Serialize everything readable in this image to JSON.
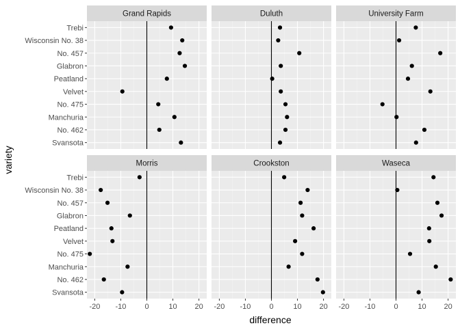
{
  "chart_data": {
    "type": "scatter",
    "xlabel": "difference",
    "ylabel": "variety",
    "xlim": [
      -23,
      23
    ],
    "x_ticks": [
      -20,
      -10,
      0,
      10,
      20
    ],
    "x_tick_labels": [
      "-20",
      "-10",
      "0",
      "10",
      "20"
    ],
    "varieties": [
      "Trebi",
      "Wisconsin No. 38",
      "No. 457",
      "Glabron",
      "Peatland",
      "Velvet",
      "No. 475",
      "Manchuria",
      "No. 462",
      "Svansota"
    ],
    "facets": [
      {
        "title": "Grand Rapids",
        "values": [
          9.3,
          13.6,
          12.6,
          14.6,
          7.7,
          -9.4,
          4.4,
          10.6,
          4.8,
          13.1
        ]
      },
      {
        "title": "Duluth",
        "values": [
          3.3,
          2.6,
          10.7,
          3.6,
          0.3,
          3.6,
          5.4,
          6.0,
          5.4,
          3.3
        ]
      },
      {
        "title": "University Farm",
        "values": [
          7.6,
          1.2,
          17.0,
          6.1,
          4.6,
          13.2,
          -5.2,
          0.2,
          10.9,
          7.7
        ]
      },
      {
        "title": "Morris",
        "values": [
          -2.8,
          -17.7,
          -15.1,
          -6.5,
          -13.6,
          -13.2,
          -21.9,
          -7.4,
          -16.5,
          -9.5
        ]
      },
      {
        "title": "Crookston",
        "values": [
          4.9,
          13.9,
          11.2,
          11.8,
          16.2,
          9.1,
          11.8,
          6.6,
          17.7,
          19.8
        ]
      },
      {
        "title": "Waseca",
        "values": [
          14.4,
          0.5,
          15.9,
          17.5,
          12.7,
          12.8,
          5.4,
          15.3,
          21.0,
          8.7
        ]
      }
    ],
    "grid": true,
    "vline_x": 0,
    "colors": {
      "panel_background": "#ebebeb",
      "grid_major": "#ffffff",
      "grid_minor": "#f4f4f4",
      "strip_background": "#d9d9d9",
      "point": "#000000",
      "text_axis": "#4d4d4d",
      "text_title": "#1a1a1a",
      "vline": "#000000"
    }
  }
}
